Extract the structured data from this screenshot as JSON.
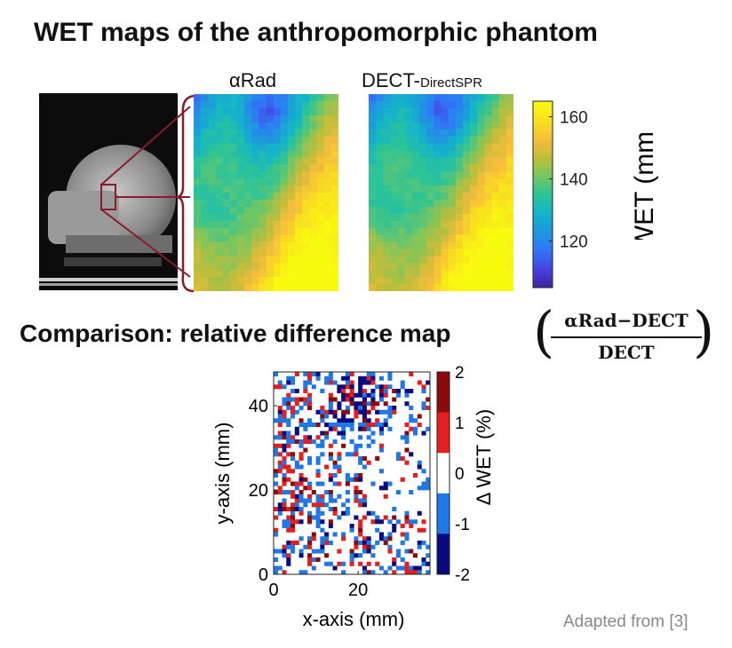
{
  "title": "WET maps of the anthropomorphic phantom",
  "map_titles": {
    "left": "αRad",
    "right_main": "DECT-",
    "right_sub": "DirectSPR"
  },
  "comparison_title": "Comparison: relative difference map",
  "formula": {
    "numerator": "αRad−DECT",
    "denominator": "DECT"
  },
  "credit": "Adapted from [3]",
  "colors": {
    "parula": [
      "#3e26a8",
      "#4745e6",
      "#2f78f7",
      "#1e99dd",
      "#14b5c8",
      "#2dc497",
      "#76c660",
      "#c1bd3a",
      "#f6bd3c",
      "#f9e01f",
      "#f9fb0e"
    ],
    "diff": [
      "#0a0a80",
      "#1e78e6",
      "#ffffff",
      "#e61e1e",
      "#8c0a0a"
    ]
  },
  "chart_data": [
    {
      "type": "heatmap",
      "title": "αRad",
      "colormap": "parula",
      "zlim": [
        105,
        165
      ],
      "values_note": "WET values estimated from color; grid of 20 columns x 28 rows",
      "grid": {
        "cols": 20,
        "rows": 28
      }
    },
    {
      "type": "heatmap",
      "title": "DECT-DirectSPR",
      "colormap": "parula",
      "zlim": [
        105,
        165
      ],
      "grid": {
        "cols": 20,
        "rows": 28
      }
    },
    {
      "type": "colorbar",
      "ticks": [
        "120",
        "140",
        "160"
      ],
      "tick_values": [
        120,
        140,
        160
      ],
      "range": [
        105,
        165
      ],
      "label": "WET (mm)"
    },
    {
      "type": "heatmap",
      "colormap": "diff",
      "xlabel": "x-axis (mm)",
      "ylabel": "y-axis (mm)",
      "xticks": [
        "0",
        "20"
      ],
      "xtick_values": [
        0,
        20
      ],
      "yticks": [
        "0",
        "20",
        "40"
      ],
      "ytick_values": [
        0,
        20,
        40
      ],
      "xlim": [
        0,
        37
      ],
      "ylim": [
        0,
        48
      ],
      "grid": {
        "cols": 37,
        "rows": 48
      },
      "colorbar": {
        "ticks": [
          "-2",
          "-1",
          "0",
          "1",
          "2"
        ],
        "tick_values": [
          -2,
          -1,
          0,
          1,
          2
        ],
        "label": "Δ WET (%)"
      }
    }
  ]
}
